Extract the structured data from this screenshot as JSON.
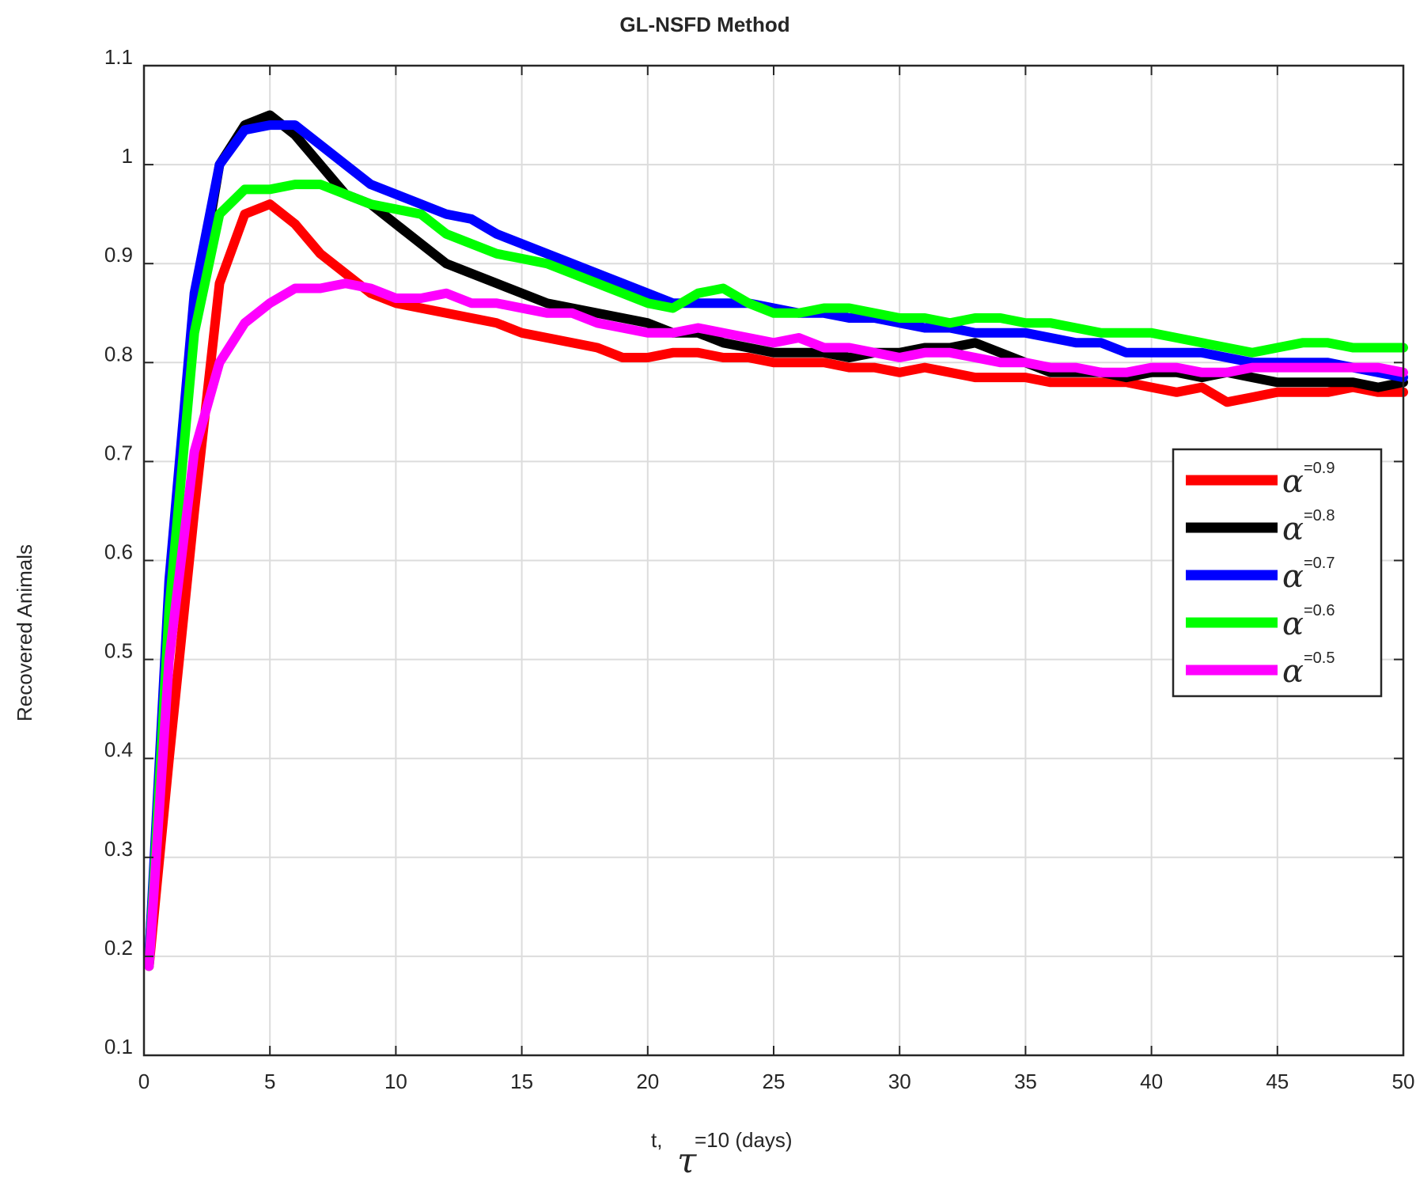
{
  "chart_data": {
    "type": "line",
    "title": "GL-NSFD Method",
    "ylabel": "Recovered Animals",
    "xlabel": {
      "prefix": "t,",
      "symbol": "τ",
      "suffix": "=10 (days)"
    },
    "xlim": [
      0,
      50
    ],
    "ylim": [
      0.1,
      1.1
    ],
    "xticks": [
      0,
      5,
      10,
      15,
      20,
      25,
      30,
      35,
      40,
      45,
      50
    ],
    "xtick_labels": [
      "0",
      "5",
      "10",
      "15",
      "20",
      "25",
      "30",
      "35",
      "40",
      "45",
      "50"
    ],
    "yticks": [
      0.1,
      0.2,
      0.3,
      0.4,
      0.5,
      0.6,
      0.7,
      0.8,
      0.9,
      1.0,
      1.1
    ],
    "ytick_labels": [
      "0.1",
      "0.2",
      "0.3",
      "0.4",
      "0.5",
      "0.6",
      "0.7",
      "0.8",
      "0.9",
      "1",
      "1.1"
    ],
    "grid": true,
    "legend_position": "right",
    "series": [
      {
        "name": "α=0.9",
        "legend_symbol": "α",
        "legend_value": "=0.9",
        "color": "#ff0000",
        "x": [
          0.2,
          1,
          2,
          3,
          4,
          5,
          6,
          7,
          8,
          9,
          10,
          11,
          12,
          13,
          14,
          15,
          16,
          17,
          18,
          19,
          20,
          21,
          22,
          23,
          24,
          25,
          26,
          27,
          28,
          29,
          30,
          31,
          32,
          33,
          34,
          35,
          36,
          37,
          38,
          39,
          40,
          41,
          42,
          43,
          44,
          45,
          46,
          47,
          48,
          49,
          50
        ],
        "y": [
          0.19,
          0.4,
          0.65,
          0.88,
          0.95,
          0.96,
          0.94,
          0.91,
          0.89,
          0.87,
          0.86,
          0.855,
          0.85,
          0.845,
          0.84,
          0.83,
          0.825,
          0.82,
          0.815,
          0.805,
          0.805,
          0.81,
          0.81,
          0.805,
          0.805,
          0.8,
          0.8,
          0.8,
          0.795,
          0.795,
          0.79,
          0.795,
          0.79,
          0.785,
          0.785,
          0.785,
          0.78,
          0.78,
          0.78,
          0.78,
          0.775,
          0.77,
          0.775,
          0.76,
          0.765,
          0.77,
          0.77,
          0.77,
          0.775,
          0.77,
          0.77
        ]
      },
      {
        "name": "α=0.8",
        "legend_symbol": "α",
        "legend_value": "=0.8",
        "color": "#000000",
        "x": [
          0.2,
          1,
          2,
          3,
          4,
          5,
          6,
          7,
          8,
          9,
          10,
          11,
          12,
          13,
          14,
          15,
          16,
          17,
          18,
          19,
          20,
          21,
          22,
          23,
          24,
          25,
          26,
          27,
          28,
          29,
          30,
          31,
          32,
          33,
          34,
          35,
          36,
          37,
          38,
          39,
          40,
          41,
          42,
          43,
          44,
          45,
          46,
          47,
          48,
          49,
          50
        ],
        "y": [
          0.2,
          0.55,
          0.85,
          1.0,
          1.04,
          1.05,
          1.03,
          1.0,
          0.97,
          0.96,
          0.94,
          0.92,
          0.9,
          0.89,
          0.88,
          0.87,
          0.86,
          0.855,
          0.85,
          0.845,
          0.84,
          0.83,
          0.83,
          0.82,
          0.815,
          0.81,
          0.81,
          0.81,
          0.805,
          0.81,
          0.81,
          0.815,
          0.815,
          0.82,
          0.81,
          0.8,
          0.79,
          0.79,
          0.79,
          0.785,
          0.79,
          0.79,
          0.785,
          0.79,
          0.785,
          0.78,
          0.78,
          0.78,
          0.78,
          0.775,
          0.78
        ]
      },
      {
        "name": "α=0.7",
        "legend_symbol": "α",
        "legend_value": "=0.7",
        "color": "#0000ff",
        "x": [
          0.2,
          1,
          2,
          3,
          4,
          5,
          6,
          7,
          8,
          9,
          10,
          11,
          12,
          13,
          14,
          15,
          16,
          17,
          18,
          19,
          20,
          21,
          22,
          23,
          24,
          25,
          26,
          27,
          28,
          29,
          30,
          31,
          32,
          33,
          34,
          35,
          36,
          37,
          38,
          39,
          40,
          41,
          42,
          43,
          44,
          45,
          46,
          47,
          48,
          49,
          50
        ],
        "y": [
          0.2,
          0.58,
          0.87,
          1.0,
          1.035,
          1.04,
          1.04,
          1.02,
          1.0,
          0.98,
          0.97,
          0.96,
          0.95,
          0.945,
          0.93,
          0.92,
          0.91,
          0.9,
          0.89,
          0.88,
          0.87,
          0.86,
          0.86,
          0.86,
          0.86,
          0.855,
          0.85,
          0.85,
          0.845,
          0.845,
          0.84,
          0.835,
          0.835,
          0.83,
          0.83,
          0.83,
          0.825,
          0.82,
          0.82,
          0.81,
          0.81,
          0.81,
          0.81,
          0.805,
          0.8,
          0.8,
          0.8,
          0.8,
          0.795,
          0.79,
          0.785
        ]
      },
      {
        "name": "α=0.6",
        "legend_symbol": "α",
        "legend_value": "=0.6",
        "color": "#00ff00",
        "x": [
          0.2,
          1,
          2,
          3,
          4,
          5,
          6,
          7,
          8,
          9,
          10,
          11,
          12,
          13,
          14,
          15,
          16,
          17,
          18,
          19,
          20,
          21,
          22,
          23,
          24,
          25,
          26,
          27,
          28,
          29,
          30,
          31,
          32,
          33,
          34,
          35,
          36,
          37,
          38,
          39,
          40,
          41,
          42,
          43,
          44,
          45,
          46,
          47,
          48,
          49,
          50
        ],
        "y": [
          0.19,
          0.55,
          0.83,
          0.95,
          0.975,
          0.975,
          0.98,
          0.98,
          0.97,
          0.96,
          0.955,
          0.95,
          0.93,
          0.92,
          0.91,
          0.905,
          0.9,
          0.89,
          0.88,
          0.87,
          0.86,
          0.855,
          0.87,
          0.875,
          0.86,
          0.85,
          0.85,
          0.855,
          0.855,
          0.85,
          0.845,
          0.845,
          0.84,
          0.845,
          0.845,
          0.84,
          0.84,
          0.835,
          0.83,
          0.83,
          0.83,
          0.825,
          0.82,
          0.815,
          0.81,
          0.815,
          0.82,
          0.82,
          0.815,
          0.815,
          0.815
        ]
      },
      {
        "name": "α=0.5",
        "legend_symbol": "α",
        "legend_value": "=0.5",
        "color": "#ff00ff",
        "x": [
          0.2,
          1,
          2,
          3,
          4,
          5,
          6,
          7,
          8,
          9,
          10,
          11,
          12,
          13,
          14,
          15,
          16,
          17,
          18,
          19,
          20,
          21,
          22,
          23,
          24,
          25,
          26,
          27,
          28,
          29,
          30,
          31,
          32,
          33,
          34,
          35,
          36,
          37,
          38,
          39,
          40,
          41,
          42,
          43,
          44,
          45,
          46,
          47,
          48,
          49,
          50
        ],
        "y": [
          0.19,
          0.5,
          0.71,
          0.8,
          0.84,
          0.86,
          0.875,
          0.875,
          0.88,
          0.875,
          0.865,
          0.865,
          0.87,
          0.86,
          0.86,
          0.855,
          0.85,
          0.85,
          0.84,
          0.835,
          0.83,
          0.83,
          0.835,
          0.83,
          0.825,
          0.82,
          0.825,
          0.815,
          0.815,
          0.81,
          0.805,
          0.81,
          0.81,
          0.805,
          0.8,
          0.8,
          0.795,
          0.795,
          0.79,
          0.79,
          0.795,
          0.795,
          0.79,
          0.79,
          0.795,
          0.795,
          0.795,
          0.795,
          0.795,
          0.795,
          0.79
        ]
      }
    ]
  }
}
